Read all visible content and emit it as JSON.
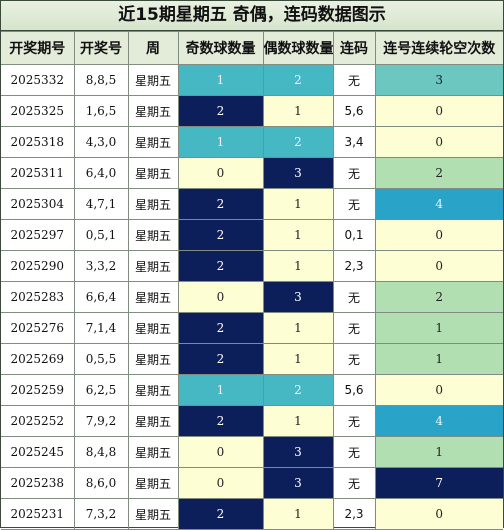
{
  "title": "近15期星期五 奇偶，连码数据图示",
  "headers": [
    "开奖期号",
    "开奖号",
    "周",
    "奇数球数量",
    "偶数球数量",
    "连码",
    "连号连续轮空次数"
  ],
  "colors": {
    "yellow": "#fefed5",
    "teal": "#45b8c4",
    "navy": "#0d1f5a",
    "mint": "#b2dfb2",
    "cyan": "#2aa3c8",
    "sea": "#6cc7c0",
    "header_bg": "#e3ecd9"
  },
  "rows": [
    {
      "issue": "2025332",
      "nums": "8,8,5",
      "week": "星期五",
      "odd": "1",
      "even": "2",
      "lianma": "无",
      "gap": "3"
    },
    {
      "issue": "2025325",
      "nums": "1,6,5",
      "week": "星期五",
      "odd": "2",
      "even": "1",
      "lianma": "5,6",
      "gap": "0"
    },
    {
      "issue": "2025318",
      "nums": "4,3,0",
      "week": "星期五",
      "odd": "1",
      "even": "2",
      "lianma": "3,4",
      "gap": "0"
    },
    {
      "issue": "2025311",
      "nums": "6,4,0",
      "week": "星期五",
      "odd": "0",
      "even": "3",
      "lianma": "无",
      "gap": "2"
    },
    {
      "issue": "2025304",
      "nums": "4,7,1",
      "week": "星期五",
      "odd": "2",
      "even": "1",
      "lianma": "无",
      "gap": "4"
    },
    {
      "issue": "2025297",
      "nums": "0,5,1",
      "week": "星期五",
      "odd": "2",
      "even": "1",
      "lianma": "0,1",
      "gap": "0"
    },
    {
      "issue": "2025290",
      "nums": "3,3,2",
      "week": "星期五",
      "odd": "2",
      "even": "1",
      "lianma": "2,3",
      "gap": "0"
    },
    {
      "issue": "2025283",
      "nums": "6,6,4",
      "week": "星期五",
      "odd": "0",
      "even": "3",
      "lianma": "无",
      "gap": "2"
    },
    {
      "issue": "2025276",
      "nums": "7,1,4",
      "week": "星期五",
      "odd": "2",
      "even": "1",
      "lianma": "无",
      "gap": "1"
    },
    {
      "issue": "2025269",
      "nums": "0,5,5",
      "week": "星期五",
      "odd": "2",
      "even": "1",
      "lianma": "无",
      "gap": "1"
    },
    {
      "issue": "2025259",
      "nums": "6,2,5",
      "week": "星期五",
      "odd": "1",
      "even": "2",
      "lianma": "5,6",
      "gap": "0"
    },
    {
      "issue": "2025252",
      "nums": "7,9,2",
      "week": "星期五",
      "odd": "2",
      "even": "1",
      "lianma": "无",
      "gap": "4"
    },
    {
      "issue": "2025245",
      "nums": "8,4,8",
      "week": "星期五",
      "odd": "0",
      "even": "3",
      "lianma": "无",
      "gap": "1"
    },
    {
      "issue": "2025238",
      "nums": "8,6,0",
      "week": "星期五",
      "odd": "0",
      "even": "3",
      "lianma": "无",
      "gap": "7"
    },
    {
      "issue": "2025231",
      "nums": "7,3,2",
      "week": "星期五",
      "odd": "2",
      "even": "1",
      "lianma": "2,3",
      "gap": "0"
    }
  ]
}
